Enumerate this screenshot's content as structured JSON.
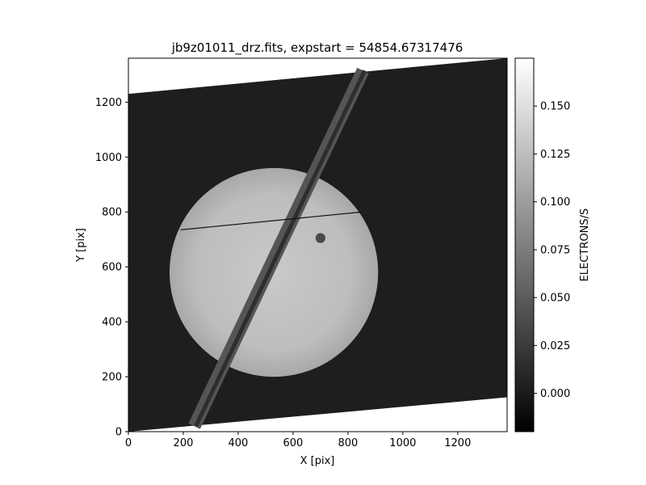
{
  "chart_data": {
    "type": "heatmap",
    "title": "jb9z01011_drz.fits, expstart = 54854.67317476",
    "xlabel": "X [pix]",
    "ylabel": "Y [pix]",
    "xlim": [
      0,
      1380
    ],
    "ylim": [
      0,
      1360
    ],
    "x_ticks": [
      0,
      200,
      400,
      600,
      800,
      1000,
      1200
    ],
    "y_ticks": [
      0,
      200,
      400,
      600,
      800,
      1000,
      1200
    ],
    "grid": false,
    "colormap": "gray",
    "colorbar": {
      "label": "ELECTRONS/S",
      "vmin": -0.02,
      "vmax": 0.175,
      "ticks": [
        0.0,
        0.025,
        0.05,
        0.075,
        0.1,
        0.125,
        0.15
      ],
      "tick_labels": [
        "0.000",
        "0.025",
        "0.050",
        "0.075",
        "0.100",
        "0.125",
        "0.150"
      ]
    },
    "frame_corners": [
      [
        0,
        0
      ],
      [
        1380,
        125
      ],
      [
        1380,
        1360
      ],
      [
        0,
        1230
      ]
    ],
    "background_value": 0.0,
    "planet": {
      "center": [
        530,
        580
      ],
      "radius": 380,
      "value": 0.11
    },
    "ring_band": {
      "from": [
        240,
        20
      ],
      "to": [
        855,
        1315
      ],
      "value": 0.055
    },
    "moon_shadow": {
      "center": [
        700,
        705
      ],
      "radius": 18,
      "value": 0.03
    },
    "chip_gap": {
      "from": [
        190,
        735
      ],
      "to": [
        850,
        800
      ],
      "value": -0.015
    }
  }
}
